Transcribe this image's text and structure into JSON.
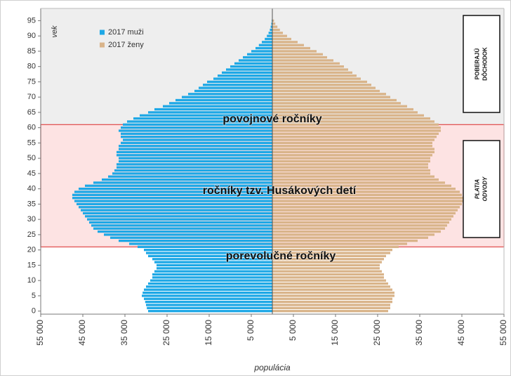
{
  "chart_data": {
    "type": "pyramid",
    "x_label": "populácia",
    "y_label": "vek",
    "y": [
      0,
      1,
      2,
      3,
      4,
      5,
      6,
      7,
      8,
      9,
      10,
      11,
      12,
      13,
      14,
      15,
      16,
      17,
      18,
      19,
      20,
      21,
      22,
      23,
      24,
      25,
      26,
      27,
      28,
      29,
      30,
      31,
      32,
      33,
      34,
      35,
      36,
      37,
      38,
      39,
      40,
      41,
      42,
      43,
      44,
      45,
      46,
      47,
      48,
      49,
      50,
      51,
      52,
      53,
      54,
      55,
      56,
      57,
      58,
      59,
      60,
      61,
      62,
      63,
      64,
      65,
      66,
      67,
      68,
      69,
      70,
      71,
      72,
      73,
      74,
      75,
      76,
      77,
      78,
      79,
      80,
      81,
      82,
      83,
      84,
      85,
      86,
      87,
      88,
      89,
      90,
      91,
      92,
      93,
      94,
      95
    ],
    "series": [
      {
        "name": "2017 muži",
        "color": "#1ea8e6",
        "values": [
          -29500,
          -29800,
          -30000,
          -30200,
          -30500,
          -31000,
          -30800,
          -30500,
          -30000,
          -29500,
          -29000,
          -28500,
          -28500,
          -28000,
          -27500,
          -27500,
          -28000,
          -28500,
          -29500,
          -30000,
          -30500,
          -32000,
          -34000,
          -36500,
          -38500,
          -40000,
          -41500,
          -42500,
          -43000,
          -43500,
          -44000,
          -44500,
          -45000,
          -45500,
          -46000,
          -46500,
          -47000,
          -47500,
          -47500,
          -47000,
          -46000,
          -44500,
          -42500,
          -40500,
          -39000,
          -38000,
          -37500,
          -37000,
          -37000,
          -36500,
          -36500,
          -37000,
          -37000,
          -36500,
          -36500,
          -36000,
          -35500,
          -36000,
          -36000,
          -36500,
          -36000,
          -35500,
          -34500,
          -33000,
          -31500,
          -29500,
          -28000,
          -26000,
          -24500,
          -23000,
          -21500,
          -20000,
          -18500,
          -17500,
          -16500,
          -15500,
          -14000,
          -13000,
          -12000,
          -11000,
          -10000,
          -9000,
          -8000,
          -7000,
          -6000,
          -5000,
          -4000,
          -3200,
          -2500,
          -1800,
          -1300,
          -900,
          -600,
          -400,
          -250,
          -150
        ]
      },
      {
        "name": "2017 ženy",
        "color": "#d9b48a",
        "values": [
          27500,
          28000,
          28000,
          28500,
          28500,
          29000,
          29000,
          28500,
          28000,
          27500,
          27000,
          26500,
          26500,
          26000,
          25500,
          25500,
          26000,
          26500,
          27000,
          28000,
          28500,
          30000,
          32000,
          34500,
          37000,
          38500,
          40000,
          41000,
          41500,
          42000,
          42500,
          43000,
          43500,
          44000,
          44500,
          45000,
          45500,
          45500,
          45000,
          44500,
          43500,
          42500,
          41000,
          39500,
          38500,
          37500,
          37500,
          37000,
          37000,
          37500,
          37500,
          38000,
          38500,
          38500,
          38000,
          38000,
          38500,
          39000,
          39500,
          40000,
          40000,
          39500,
          38500,
          37500,
          36000,
          34500,
          33500,
          32000,
          30500,
          29500,
          28000,
          27000,
          25500,
          24500,
          23500,
          22500,
          21000,
          20000,
          19000,
          18000,
          17000,
          16000,
          14500,
          13000,
          12000,
          10500,
          9000,
          7500,
          6000,
          4500,
          3500,
          2500,
          1800,
          1200,
          700,
          400
        ]
      }
    ],
    "xlim": [
      -55000,
      55000
    ],
    "xticks": [
      {
        "value": -55000,
        "label": "55 000"
      },
      {
        "value": -45000,
        "label": "45 000"
      },
      {
        "value": -35000,
        "label": "35 000"
      },
      {
        "value": -25000,
        "label": "25 000"
      },
      {
        "value": -15000,
        "label": "15 000"
      },
      {
        "value": -5000,
        "label": "5 000"
      },
      {
        "value": 5000,
        "label": "5 000"
      },
      {
        "value": 15000,
        "label": "15 000"
      },
      {
        "value": 25000,
        "label": "25 000"
      },
      {
        "value": 35000,
        "label": "35 000"
      },
      {
        "value": 45000,
        "label": "45 000"
      },
      {
        "value": 55000,
        "label": "55 000"
      }
    ],
    "ylim": [
      -1,
      99
    ],
    "yticks": [
      0,
      5,
      10,
      15,
      20,
      25,
      30,
      35,
      40,
      45,
      50,
      55,
      60,
      65,
      70,
      75,
      80,
      85,
      90,
      95
    ],
    "grid": false,
    "legend": "upper left",
    "regions": [
      {
        "from": 61,
        "to": 99,
        "color": "#eeeeee"
      },
      {
        "from": 21,
        "to": 61,
        "color": "#fde3e3",
        "border": "#e04848"
      }
    ],
    "annotations": [
      {
        "text": "povojnové ročníky"
      },
      {
        "text": "ročníky tzv. Husákových detí"
      },
      {
        "text": "porevolučné ročníky"
      }
    ],
    "side_labels": [
      {
        "lines": [
          "POBERAJÚ",
          "DÔCHODOK"
        ]
      },
      {
        "lines": [
          "PLATIA",
          "ODVODY"
        ]
      }
    ]
  }
}
